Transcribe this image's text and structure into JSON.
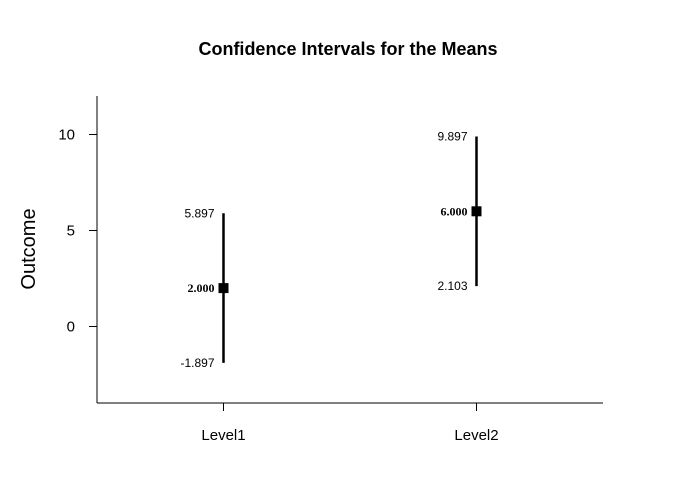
{
  "chart_data": {
    "type": "scatter",
    "title": "Confidence Intervals for the Means",
    "xlabel": "",
    "ylabel": "Outcome",
    "categories": [
      "Level1",
      "Level2"
    ],
    "means": [
      2.0,
      6.0
    ],
    "lower": [
      -1.897,
      2.103
    ],
    "upper": [
      5.897,
      9.897
    ],
    "mean_labels": [
      "2.000",
      "6.000"
    ],
    "lower_labels": [
      "-1.897",
      "2.103"
    ],
    "upper_labels": [
      "5.897",
      "9.897"
    ],
    "ylim": [
      -4,
      12
    ],
    "yticks": [
      0,
      5,
      10
    ],
    "ytick_labels": [
      "0",
      "5",
      "10"
    ],
    "grid": false,
    "legend": false
  }
}
